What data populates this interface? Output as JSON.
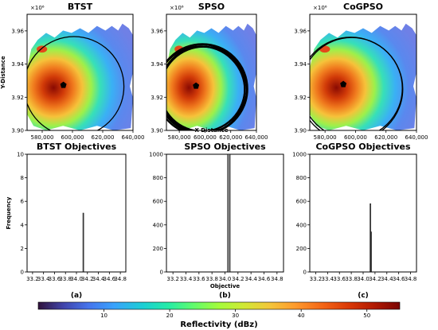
{
  "chart_data": {
    "maps": [
      {
        "title": "BTST",
        "type": "heatmap",
        "x_ticks": [
          "580,000",
          "600,000",
          "620,000",
          "640,000"
        ],
        "y_ticks": [
          "3.90",
          "3.92",
          "3.94",
          "3.96"
        ],
        "y_multiplier": "×10⁶",
        "xlabel": "",
        "ylabel": "Y-Distance",
        "circles": [
          {
            "cx": 601000,
            "cy": 3926500,
            "r": 33000
          }
        ],
        "marker": {
          "x": 594000,
          "y": 3927500
        }
      },
      {
        "title": "SPSO",
        "type": "heatmap",
        "x_ticks": [
          "580,000",
          "600,000",
          "620,000",
          "640,000"
        ],
        "y_ticks": [
          "3.90",
          "3.92",
          "3.94",
          "3.96"
        ],
        "y_multiplier": "×10⁶",
        "xlabel": "X-Distance",
        "ylabel": "",
        "circles": [
          {
            "cx": 598000,
            "cy": 3925000,
            "r": 35000
          },
          {
            "cx": 597000,
            "cy": 3925500,
            "r": 34000
          },
          {
            "cx": 599000,
            "cy": 3924500,
            "r": 33500
          },
          {
            "cx": 598000,
            "cy": 3925000,
            "r": 33000
          },
          {
            "cx": 596500,
            "cy": 3924000,
            "r": 34500
          }
        ],
        "marker": {
          "x": 593000,
          "y": 3927000
        }
      },
      {
        "title": "CoGPSO",
        "type": "heatmap",
        "x_ticks": [
          "580,000",
          "600,000",
          "620,000",
          "640,000"
        ],
        "y_ticks": [
          "3.90",
          "3.92",
          "3.94",
          "3.96"
        ],
        "y_multiplier": "×10⁶",
        "xlabel": "",
        "ylabel": "",
        "circles": [
          {
            "cx": 597000,
            "cy": 3925000,
            "r": 34000
          },
          {
            "cx": 597500,
            "cy": 3925500,
            "r": 33200
          }
        ],
        "marker": {
          "x": 592000,
          "y": 3928000
        }
      }
    ],
    "histograms": [
      {
        "title": "BTST Objectives",
        "type": "bar",
        "xlabel": "",
        "ylabel": "Frequency",
        "xlim": [
          33.1,
          34.9
        ],
        "ylim": [
          0,
          10
        ],
        "x_ticks": [
          "33.2",
          "33.4",
          "33.6",
          "33.8",
          "34.0",
          "34.2",
          "34.4",
          "34.6",
          "34.8"
        ],
        "y_ticks": [
          "0",
          "2",
          "4",
          "6",
          "8",
          "10"
        ],
        "bars": [
          {
            "x": 34.12,
            "width": 0.005,
            "value": 5
          }
        ],
        "sublabel": "(a)"
      },
      {
        "title": "SPSO Objectives",
        "type": "bar",
        "xlabel": "Objective",
        "ylabel": "",
        "xlim": [
          33.1,
          34.9
        ],
        "ylim": [
          0,
          1000
        ],
        "x_ticks": [
          "33.2",
          "33.4",
          "33.6",
          "33.8",
          "34.0",
          "34.2",
          "34.4",
          "34.6",
          "34.8"
        ],
        "y_ticks": [
          "0",
          "200",
          "400",
          "600",
          "800",
          "1000"
        ],
        "bars": [
          {
            "x": 34.06,
            "width": 0.04,
            "value": 1000
          }
        ],
        "sublabel": "(b)"
      },
      {
        "title": "CoGPSO Objectives",
        "type": "bar",
        "xlabel": "",
        "ylabel": "",
        "xlim": [
          33.1,
          34.9
        ],
        "ylim": [
          0,
          1000
        ],
        "x_ticks": [
          "33.2",
          "33.4",
          "33.6",
          "33.8",
          "34.0",
          "34.2",
          "34.4",
          "34.6",
          "34.8"
        ],
        "y_ticks": [
          "0",
          "200",
          "400",
          "600",
          "800",
          "1000"
        ],
        "bars": [
          {
            "x": 34.12,
            "width": 0.008,
            "value": 580
          },
          {
            "x": 34.13,
            "width": 0.004,
            "value": 340
          }
        ],
        "sublabel": "(c)"
      }
    ],
    "colorbar": {
      "label": "Reflectivity (dBz)",
      "range": [
        0,
        55
      ],
      "ticks": [
        "10",
        "20",
        "30",
        "40",
        "50"
      ],
      "colormap": "turbo"
    }
  },
  "colors": {
    "frame": "#000000",
    "bar_fill": "#808080",
    "circle": "#000000"
  }
}
